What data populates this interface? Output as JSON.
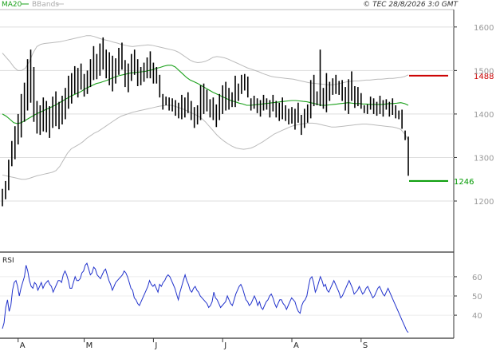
{
  "header": {
    "legend_ma": "MA20",
    "legend_bbands": "BBands",
    "copyright": "© TEC 28/8/2026 3:0 GMT"
  },
  "colors": {
    "ma": "#1aa01a",
    "bands": "#bbbbbb",
    "bars": "#000000",
    "rsi": "#2233cc",
    "resistance": "#cc0000",
    "support": "#009900",
    "grid": "#dddddd"
  },
  "chart_data": [
    {
      "type": "ohlc-bar",
      "title": "",
      "ylim": [
        1090,
        1640
      ],
      "yticks": [
        1200,
        1300,
        1400,
        1500,
        1600
      ],
      "grid": true,
      "x_tick_labels": [
        "A",
        "M",
        "J",
        "J",
        "A",
        "S"
      ],
      "x_tick_index": [
        5,
        26,
        48,
        70,
        92,
        114
      ],
      "series": [
        {
          "name": "MA20",
          "values": [
            1400,
            1395,
            1388,
            1380,
            1378,
            1380,
            1385,
            1390,
            1395,
            1400,
            1404,
            1408,
            1412,
            1416,
            1420,
            1425,
            1430,
            1435,
            1440,
            1444,
            1448,
            1452,
            1458,
            1462,
            1466,
            1470,
            1472,
            1475,
            1478,
            1482,
            1485,
            1488,
            1490,
            1492,
            1494,
            1495,
            1496,
            1497,
            1498,
            1500,
            1502,
            1505,
            1507,
            1510,
            1512,
            1512,
            1508,
            1500,
            1492,
            1484,
            1478,
            1474,
            1470,
            1465,
            1460,
            1455,
            1450,
            1446,
            1442,
            1438,
            1434,
            1430,
            1428,
            1425,
            1423,
            1420,
            1420,
            1421,
            1422,
            1423,
            1424,
            1425,
            1426,
            1427,
            1428,
            1429,
            1430,
            1431,
            1431,
            1430,
            1429,
            1428,
            1426,
            1424,
            1422,
            1420,
            1420,
            1421,
            1422,
            1423,
            1424,
            1425,
            1426,
            1425,
            1424,
            1424,
            1423,
            1423,
            1422,
            1422,
            1422,
            1422,
            1423,
            1424,
            1424,
            1425,
            1426,
            1424,
            1420
          ]
        },
        {
          "name": "Upper band",
          "values": [
            1540,
            1530,
            1520,
            1508,
            1500,
            1500,
            1505,
            1520,
            1540,
            1555,
            1560,
            1562,
            1563,
            1564,
            1565,
            1566,
            1568,
            1570,
            1572,
            1574,
            1576,
            1578,
            1580,
            1580,
            1578,
            1575,
            1572,
            1570,
            1568,
            1565,
            1563,
            1560,
            1558,
            1556,
            1555,
            1556,
            1557,
            1558,
            1559,
            1558,
            1556,
            1554,
            1552,
            1550,
            1548,
            1546,
            1542,
            1536,
            1530,
            1524,
            1520,
            1518,
            1519,
            1521,
            1525,
            1530,
            1532,
            1531,
            1529,
            1526,
            1522,
            1518,
            1514,
            1510,
            1506,
            1503,
            1500,
            1497,
            1493,
            1490,
            1487,
            1485,
            1484,
            1483,
            1482,
            1481,
            1480,
            1478,
            1476,
            1474,
            1472,
            1471,
            1470,
            1469,
            1468,
            1467,
            1467,
            1468,
            1470,
            1472,
            1474,
            1475,
            1476,
            1476,
            1477,
            1478,
            1478,
            1479,
            1480,
            1480,
            1481,
            1482,
            1482,
            1483,
            1484,
            1486,
            1490
          ]
        },
        {
          "name": "Lower band",
          "values": [
            1260,
            1258,
            1256,
            1254,
            1252,
            1250,
            1250,
            1252,
            1255,
            1258,
            1260,
            1262,
            1264,
            1266,
            1270,
            1280,
            1295,
            1310,
            1320,
            1325,
            1330,
            1336,
            1344,
            1350,
            1356,
            1360,
            1366,
            1372,
            1378,
            1384,
            1390,
            1395,
            1398,
            1401,
            1404,
            1406,
            1408,
            1410,
            1412,
            1414,
            1416,
            1418,
            1419,
            1420,
            1420,
            1418,
            1415,
            1412,
            1408,
            1404,
            1400,
            1396,
            1390,
            1382,
            1372,
            1362,
            1352,
            1344,
            1337,
            1331,
            1326,
            1322,
            1320,
            1319,
            1320,
            1322,
            1326,
            1331,
            1336,
            1342,
            1348,
            1354,
            1358,
            1362,
            1366,
            1370,
            1373,
            1375,
            1377,
            1378,
            1379,
            1379,
            1378,
            1376,
            1374,
            1372,
            1370,
            1370,
            1371,
            1372,
            1373,
            1374,
            1375,
            1376,
            1377,
            1377,
            1376,
            1375,
            1374,
            1373,
            1372,
            1371,
            1370,
            1368,
            1365,
            1355,
            1340
          ]
        }
      ],
      "bars": [
        [
          1228,
          1188
        ],
        [
          1246,
          1204
        ],
        [
          1295,
          1225
        ],
        [
          1338,
          1280
        ],
        [
          1372,
          1296
        ],
        [
          1400,
          1330
        ],
        [
          1446,
          1346
        ],
        [
          1472,
          1382
        ],
        [
          1526,
          1408
        ],
        [
          1548,
          1426
        ],
        [
          1508,
          1382
        ],
        [
          1430,
          1355
        ],
        [
          1420,
          1352
        ],
        [
          1438,
          1360
        ],
        [
          1430,
          1358
        ],
        [
          1418,
          1345
        ],
        [
          1440,
          1368
        ],
        [
          1452,
          1372
        ],
        [
          1428,
          1365
        ],
        [
          1442,
          1376
        ],
        [
          1460,
          1388
        ],
        [
          1488,
          1412
        ],
        [
          1494,
          1424
        ],
        [
          1510,
          1446
        ],
        [
          1506,
          1438
        ],
        [
          1516,
          1456
        ],
        [
          1492,
          1440
        ],
        [
          1500,
          1446
        ],
        [
          1526,
          1462
        ],
        [
          1556,
          1478
        ],
        [
          1538,
          1480
        ],
        [
          1562,
          1488
        ],
        [
          1576,
          1502
        ],
        [
          1548,
          1482
        ],
        [
          1542,
          1466
        ],
        [
          1534,
          1452
        ],
        [
          1528,
          1470
        ],
        [
          1552,
          1490
        ],
        [
          1564,
          1502
        ],
        [
          1524,
          1462
        ],
        [
          1516,
          1450
        ],
        [
          1538,
          1476
        ],
        [
          1548,
          1490
        ],
        [
          1526,
          1464
        ],
        [
          1508,
          1466
        ],
        [
          1518,
          1474
        ],
        [
          1530,
          1482
        ],
        [
          1544,
          1482
        ],
        [
          1518,
          1470
        ],
        [
          1508,
          1470
        ],
        [
          1490,
          1438
        ],
        [
          1446,
          1410
        ],
        [
          1440,
          1420
        ],
        [
          1438,
          1408
        ],
        [
          1436,
          1406
        ],
        [
          1432,
          1396
        ],
        [
          1426,
          1390
        ],
        [
          1444,
          1388
        ],
        [
          1438,
          1392
        ],
        [
          1450,
          1402
        ],
        [
          1430,
          1386
        ],
        [
          1416,
          1368
        ],
        [
          1420,
          1376
        ],
        [
          1466,
          1386
        ],
        [
          1470,
          1400
        ],
        [
          1456,
          1406
        ],
        [
          1434,
          1392
        ],
        [
          1438,
          1386
        ],
        [
          1422,
          1370
        ],
        [
          1446,
          1386
        ],
        [
          1466,
          1400
        ],
        [
          1474,
          1408
        ],
        [
          1460,
          1410
        ],
        [
          1450,
          1416
        ],
        [
          1488,
          1416
        ],
        [
          1470,
          1430
        ],
        [
          1490,
          1446
        ],
        [
          1492,
          1454
        ],
        [
          1486,
          1438
        ],
        [
          1436,
          1408
        ],
        [
          1442,
          1412
        ],
        [
          1436,
          1402
        ],
        [
          1432,
          1394
        ],
        [
          1444,
          1408
        ],
        [
          1436,
          1410
        ],
        [
          1432,
          1392
        ],
        [
          1444,
          1406
        ],
        [
          1430,
          1392
        ],
        [
          1426,
          1384
        ],
        [
          1438,
          1388
        ],
        [
          1420,
          1384
        ],
        [
          1412,
          1376
        ],
        [
          1416,
          1378
        ],
        [
          1412,
          1364
        ],
        [
          1426,
          1380
        ],
        [
          1398,
          1352
        ],
        [
          1412,
          1368
        ],
        [
          1422,
          1380
        ],
        [
          1478,
          1390
        ],
        [
          1490,
          1418
        ],
        [
          1452,
          1420
        ],
        [
          1548,
          1418
        ],
        [
          1460,
          1412
        ],
        [
          1494,
          1404
        ],
        [
          1474,
          1430
        ],
        [
          1482,
          1444
        ],
        [
          1490,
          1446
        ],
        [
          1476,
          1444
        ],
        [
          1478,
          1430
        ],
        [
          1462,
          1408
        ],
        [
          1480,
          1400
        ],
        [
          1498,
          1430
        ],
        [
          1464,
          1414
        ],
        [
          1462,
          1418
        ],
        [
          1448,
          1412
        ],
        [
          1420,
          1402
        ],
        [
          1422,
          1400
        ],
        [
          1440,
          1410
        ],
        [
          1436,
          1400
        ],
        [
          1428,
          1396
        ],
        [
          1442,
          1400
        ],
        [
          1432,
          1394
        ],
        [
          1434,
          1410
        ],
        [
          1428,
          1394
        ],
        [
          1436,
          1398
        ],
        [
          1420,
          1390
        ],
        [
          1408,
          1388
        ],
        [
          1410,
          1366
        ],
        [
          1362,
          1340
        ],
        [
          1348,
          1258
        ]
      ],
      "levels": [
        {
          "name": "resistance",
          "value": 1488,
          "label": "1488"
        },
        {
          "name": "support",
          "value": 1246,
          "label": "1246"
        }
      ]
    },
    {
      "type": "line",
      "title": "RSI",
      "ylim": [
        28,
        72
      ],
      "yticks": [
        40,
        50,
        60
      ],
      "grid": true,
      "series": [
        {
          "name": "RSI",
          "values": [
            33,
            36,
            44,
            48,
            42,
            45,
            53,
            57,
            58,
            55,
            50,
            54,
            57,
            60,
            66,
            63,
            58,
            55,
            54,
            57,
            56,
            53,
            55,
            57,
            54,
            56,
            57,
            58,
            56,
            55,
            52,
            54,
            56,
            58,
            58,
            57,
            61,
            63,
            61,
            58,
            54,
            54,
            57,
            60,
            58,
            58,
            59,
            62,
            63,
            66,
            67,
            64,
            61,
            62,
            65,
            64,
            61,
            60,
            59,
            61,
            63,
            64,
            61,
            58,
            56,
            53,
            55,
            57,
            58,
            59,
            60,
            61,
            63,
            62,
            60,
            57,
            54,
            53,
            49,
            48,
            46,
            45,
            47,
            49,
            51,
            53,
            55,
            58,
            56,
            55,
            56,
            54,
            52,
            56,
            55,
            57,
            58,
            60,
            61,
            60,
            58,
            56,
            54,
            51,
            48,
            52,
            55,
            58,
            61,
            58,
            56,
            53,
            52,
            54,
            55,
            53,
            52,
            50,
            49,
            48,
            47,
            46,
            44,
            45,
            47,
            52,
            49,
            48,
            46,
            44,
            45,
            46,
            47,
            50,
            48,
            46,
            45,
            48,
            51,
            53,
            55,
            56,
            54,
            51,
            48,
            47,
            45,
            46,
            48,
            50,
            48,
            45,
            47,
            44,
            43,
            45,
            47,
            48,
            50,
            51,
            49,
            46,
            44,
            46,
            48,
            48,
            46,
            45,
            43,
            45,
            47,
            49,
            48,
            47,
            44,
            42,
            41,
            45,
            47,
            48,
            50,
            55,
            59,
            60,
            57,
            52,
            54,
            57,
            60,
            58,
            55,
            56,
            53,
            52,
            54,
            56,
            58,
            56,
            54,
            52,
            49,
            50,
            52,
            54,
            56,
            58,
            56,
            54,
            51,
            52,
            53,
            55,
            53,
            51,
            52,
            54,
            55,
            53,
            51,
            49,
            50,
            52,
            54,
            55,
            53,
            51,
            50,
            52,
            54,
            52,
            50,
            48,
            46,
            44,
            42,
            40,
            38,
            36,
            34,
            32,
            31
          ]
        }
      ]
    }
  ]
}
